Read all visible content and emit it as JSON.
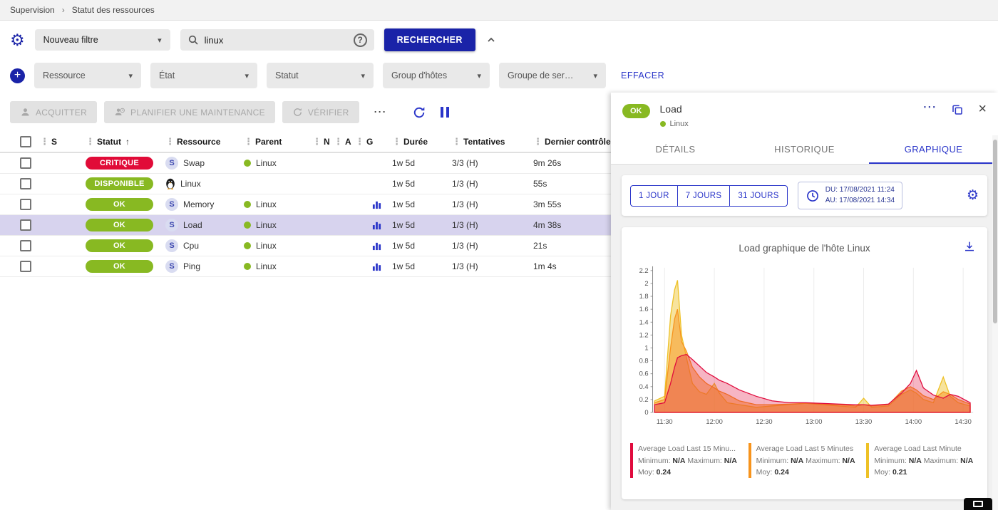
{
  "icons": {
    "gear": "⚙",
    "kebab": "⋮",
    "more": "⋯",
    "sort_asc": "↑",
    "close": "×",
    "chevron_down": "▾",
    "plus": "+",
    "help": "?"
  },
  "theme": {
    "primary_navy": "#1a23a8",
    "link_blue": "#2a35c9",
    "critical_red": "#e10b38",
    "ok_green": "#88b922",
    "selected_row": "#d7d3ee"
  },
  "breadcrumb": {
    "items": [
      "Supervision",
      "Statut des ressources"
    ],
    "separator": "›"
  },
  "filters": {
    "saved_filter": "Nouveau filtre",
    "search_value": "linux",
    "search_button": "RECHERCHER",
    "clear_button": "EFFACER",
    "criteria": [
      "Ressource",
      "État",
      "Statut",
      "Group d'hôtes",
      "Groupe de ser…"
    ]
  },
  "toolbar": {
    "acknowledge": "ACQUITTER",
    "downtime": "PLANIFIER UNE MAINTENANCE",
    "check": "VÉRIFIER"
  },
  "table": {
    "columns": [
      "S",
      "Statut",
      "Ressource",
      "Parent",
      "N",
      "A",
      "G",
      "Durée",
      "Tentatives",
      "Dernier contrôle"
    ],
    "sort_indicator": "↑",
    "rows": [
      {
        "status": "CRITIQUE",
        "status_color": "#e10b38",
        "type": "service",
        "resource": "Swap",
        "parent": "Linux",
        "graph": false,
        "duration": "1w 5d",
        "tries": "3/3 (H)",
        "last_check": "9m 26s",
        "selected": false
      },
      {
        "status": "DISPONIBLE",
        "status_color": "#88b922",
        "type": "host",
        "resource": "Linux",
        "parent": "",
        "graph": false,
        "duration": "1w 5d",
        "tries": "1/3 (H)",
        "last_check": "55s",
        "selected": false
      },
      {
        "status": "OK",
        "status_color": "#88b922",
        "type": "service",
        "resource": "Memory",
        "parent": "Linux",
        "graph": true,
        "duration": "1w 5d",
        "tries": "1/3 (H)",
        "last_check": "3m 55s",
        "selected": false
      },
      {
        "status": "OK",
        "status_color": "#88b922",
        "type": "service",
        "resource": "Load",
        "parent": "Linux",
        "graph": true,
        "duration": "1w 5d",
        "tries": "1/3 (H)",
        "last_check": "4m 38s",
        "selected": true
      },
      {
        "status": "OK",
        "status_color": "#88b922",
        "type": "service",
        "resource": "Cpu",
        "parent": "Linux",
        "graph": true,
        "duration": "1w 5d",
        "tries": "1/3 (H)",
        "last_check": "21s",
        "selected": false
      },
      {
        "status": "OK",
        "status_color": "#88b922",
        "type": "service",
        "resource": "Ping",
        "parent": "Linux",
        "graph": true,
        "duration": "1w 5d",
        "tries": "1/3 (H)",
        "last_check": "1m 4s",
        "selected": false
      }
    ]
  },
  "panel": {
    "status": "OK",
    "title": "Load",
    "host": "Linux",
    "tabs": [
      "DÉTAILS",
      "HISTORIQUE",
      "GRAPHIQUE"
    ],
    "active_tab": "GRAPHIQUE",
    "ranges": [
      "1 JOUR",
      "7 JOURS",
      "31 JOURS"
    ],
    "period": {
      "from": "DU: 17/08/2021 11:24",
      "to": "AU: 17/08/2021 14:34"
    }
  },
  "chart_data": {
    "type": "area",
    "title": "Load graphique de l'hôte Linux",
    "ylim": [
      0,
      2.2
    ],
    "yticks": [
      0,
      0.2,
      0.4,
      0.6,
      0.8,
      1,
      1.2,
      1.4,
      1.6,
      1.8,
      2,
      2.2
    ],
    "xticks": [
      "11:30",
      "12:00",
      "12:30",
      "13:00",
      "13:30",
      "14:00",
      "14:30"
    ],
    "x_range_hours": [
      11.38,
      14.6
    ],
    "grid": "vertical",
    "legend_labels": {
      "min": "Minimum:",
      "max": "Maximum:",
      "avg": "Moy:"
    },
    "x": [
      11.4,
      11.5,
      11.56,
      11.6,
      11.63,
      11.67,
      11.72,
      11.78,
      11.85,
      11.92,
      12.0,
      12.05,
      12.13,
      12.25,
      12.42,
      12.58,
      12.75,
      12.92,
      13.08,
      13.25,
      13.42,
      13.5,
      13.58,
      13.75,
      13.88,
      13.97,
      14.03,
      14.1,
      14.2,
      14.3,
      14.37,
      14.45,
      14.57
    ],
    "series": [
      {
        "name": "Average Load Last 15 Minu...",
        "color": "#e00b3d",
        "fill_opacity": 0.3,
        "min": "N/A",
        "max": "N/A",
        "avg": "0.24",
        "values": [
          0.12,
          0.15,
          0.45,
          0.7,
          0.85,
          0.88,
          0.9,
          0.82,
          0.72,
          0.62,
          0.55,
          0.5,
          0.45,
          0.35,
          0.25,
          0.18,
          0.15,
          0.15,
          0.14,
          0.13,
          0.12,
          0.12,
          0.11,
          0.13,
          0.3,
          0.45,
          0.65,
          0.38,
          0.27,
          0.22,
          0.28,
          0.25,
          0.15
        ]
      },
      {
        "name": "Average Load Last 5 Minutes",
        "color": "#f7941d",
        "fill_opacity": 0.5,
        "min": "N/A",
        "max": "N/A",
        "avg": "0.24",
        "values": [
          0.15,
          0.2,
          1.0,
          1.45,
          1.6,
          1.1,
          0.95,
          0.7,
          0.55,
          0.45,
          0.38,
          0.33,
          0.28,
          0.18,
          0.12,
          0.12,
          0.13,
          0.14,
          0.13,
          0.12,
          0.1,
          0.12,
          0.1,
          0.12,
          0.33,
          0.4,
          0.35,
          0.26,
          0.2,
          0.32,
          0.28,
          0.2,
          0.13
        ]
      },
      {
        "name": "Average Load Last Minute",
        "color": "#eec126",
        "fill_opacity": 0.45,
        "min": "N/A",
        "max": "N/A",
        "avg": "0.21",
        "values": [
          0.18,
          0.25,
          1.5,
          1.9,
          2.05,
          1.2,
          0.85,
          0.45,
          0.32,
          0.28,
          0.45,
          0.3,
          0.15,
          0.12,
          0.08,
          0.1,
          0.12,
          0.14,
          0.12,
          0.1,
          0.08,
          0.22,
          0.08,
          0.1,
          0.28,
          0.35,
          0.3,
          0.2,
          0.15,
          0.55,
          0.25,
          0.15,
          0.1
        ]
      }
    ]
  }
}
